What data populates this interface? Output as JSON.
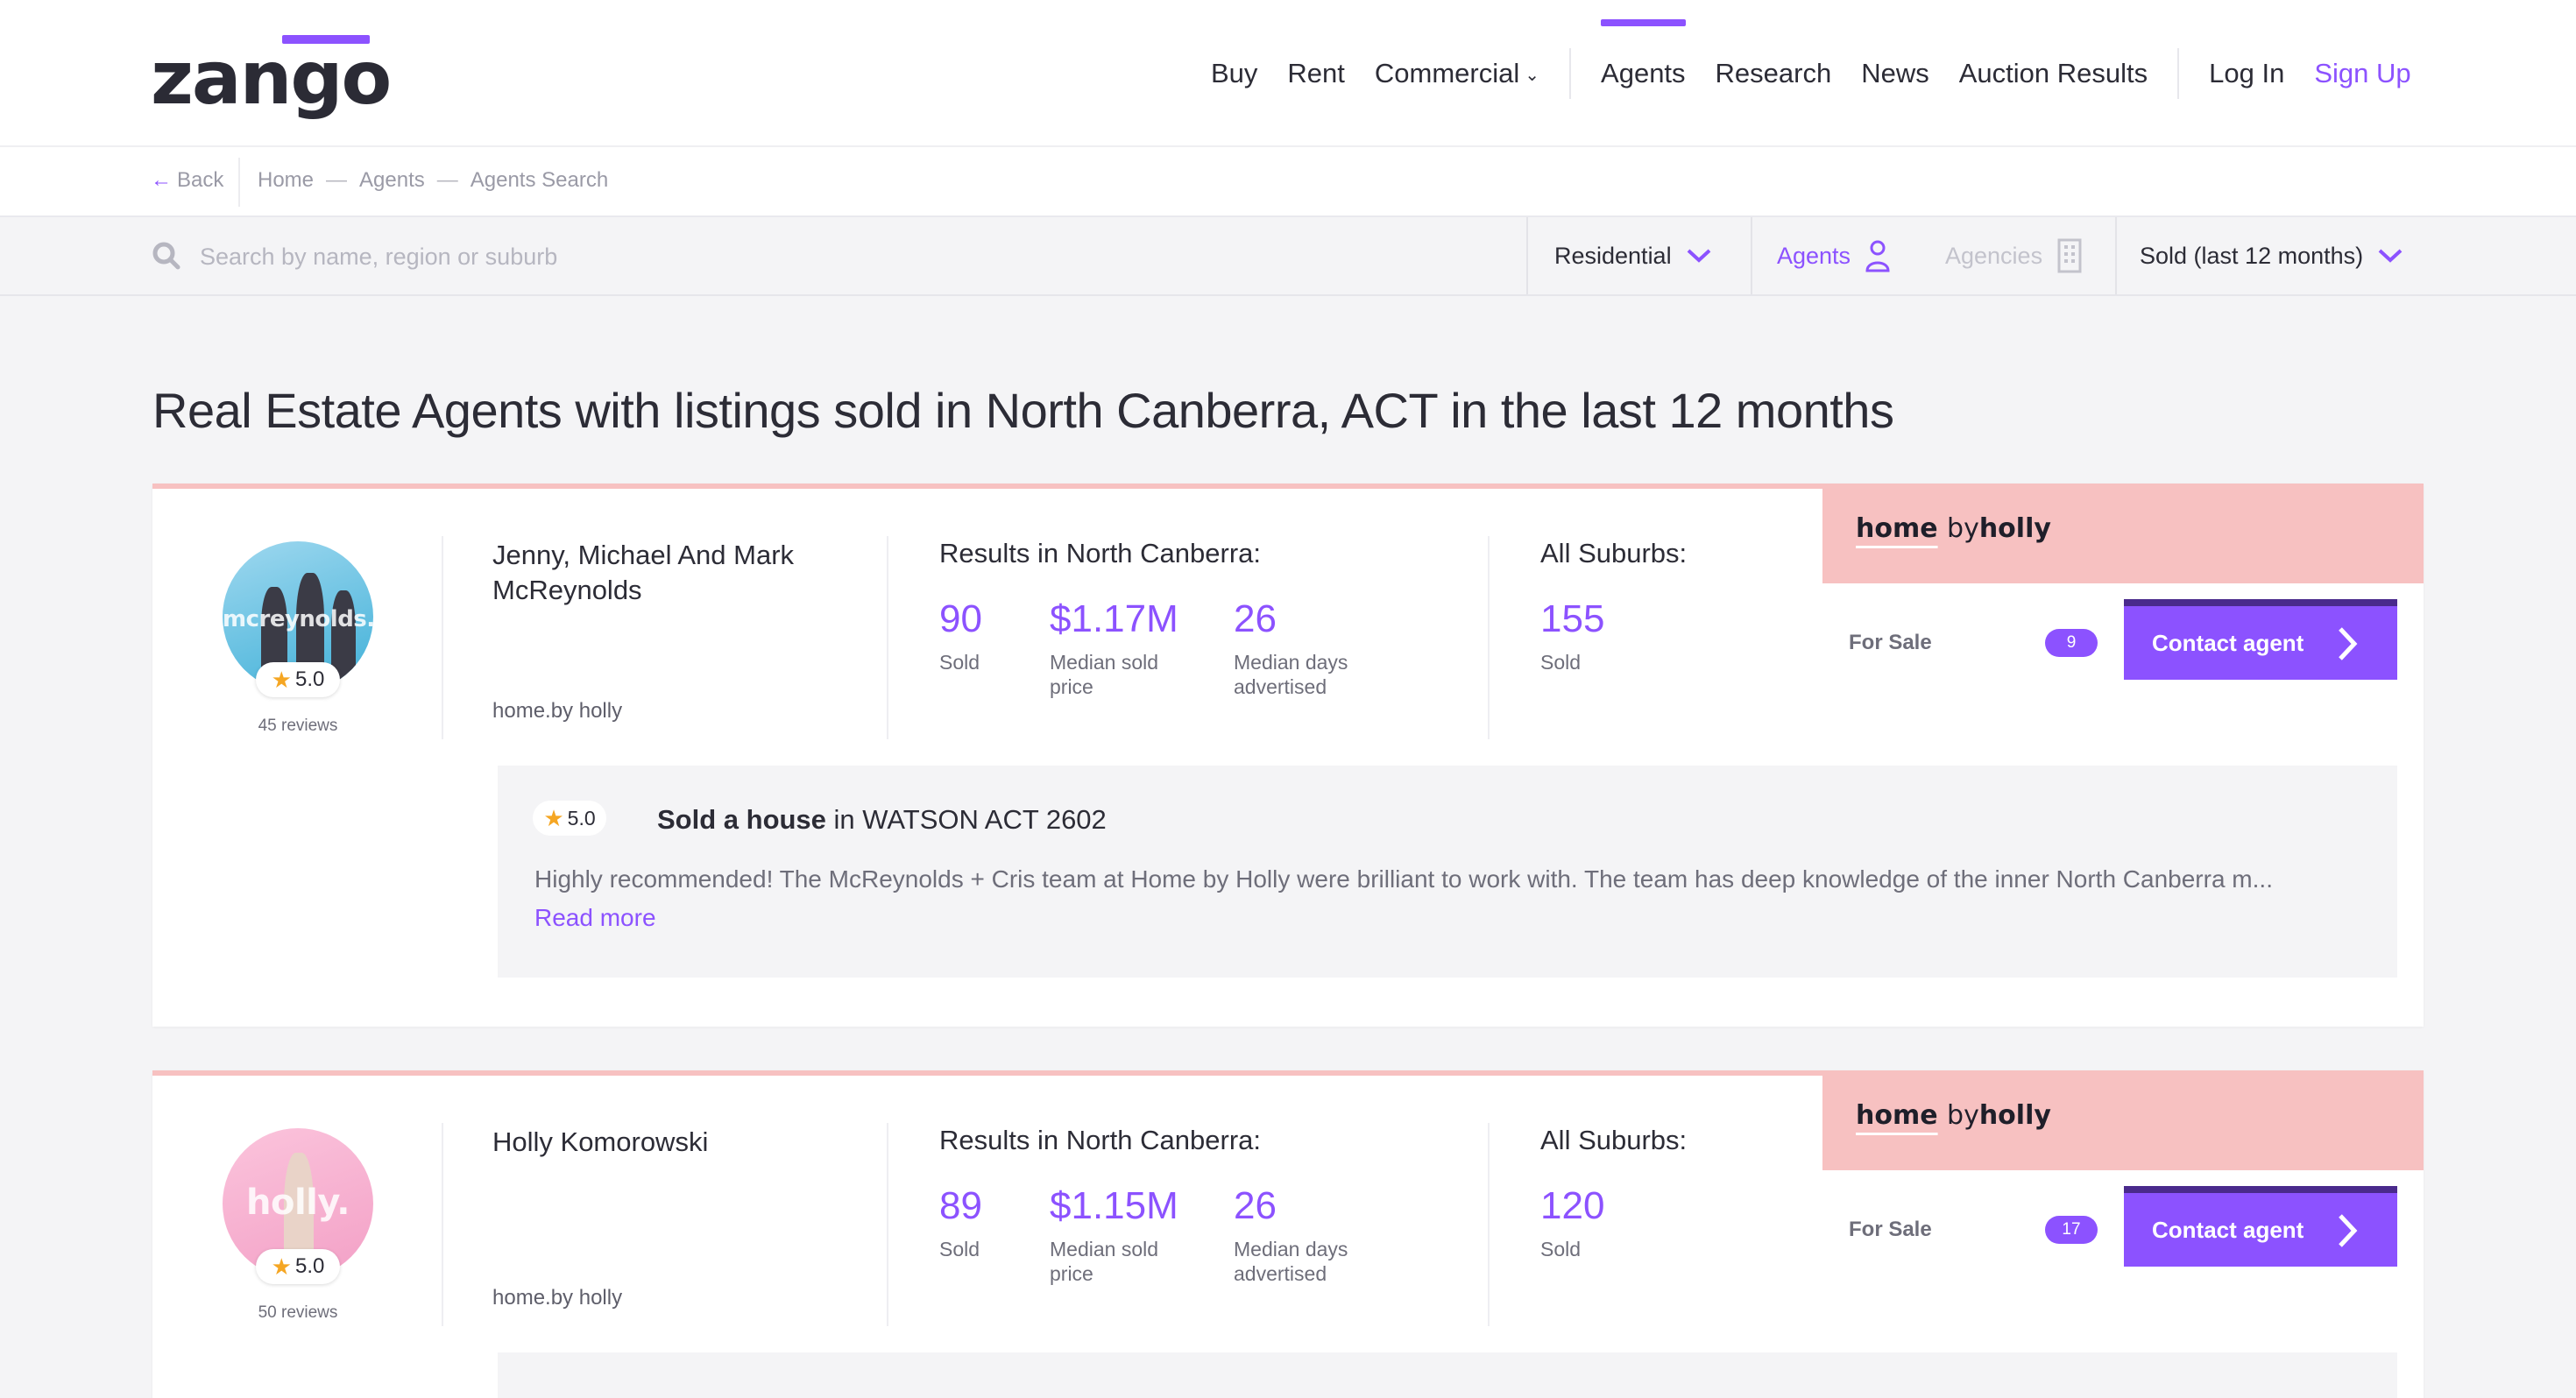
{
  "header": {
    "logo": "zango",
    "nav": [
      "Buy",
      "Rent",
      "Commercial",
      "Agents",
      "Research",
      "News",
      "Auction Results"
    ],
    "login": "Log In",
    "signup": "Sign Up"
  },
  "breadcrumb": {
    "back": "Back",
    "items": [
      "Home",
      "Agents",
      "Agents Search"
    ]
  },
  "search": {
    "placeholder": "Search by name, region or suburb",
    "filters": {
      "type": "Residential",
      "agents": "Agents",
      "agencies": "Agencies",
      "period": "Sold (last 12 months)"
    }
  },
  "page": {
    "title": "Real Estate Agents with listings sold in North Canberra, ACT in the last 12 months"
  },
  "agents": [
    {
      "avatar_text": "mcreynolds.",
      "rating": "5.0",
      "reviews": "45 reviews",
      "name": "Jenny, Michael And Mark McReynolds",
      "agency": "home.by holly",
      "results_title": "Results in North Canberra:",
      "sold": "90",
      "sold_label": "Sold",
      "median_price": "$1.17M",
      "median_price_label": "Median sold price",
      "median_days": "26",
      "median_days_label": "Median days advertised",
      "all_title": "All Suburbs:",
      "all_sold": "155",
      "all_sold_label": "Sold",
      "brand_home": "home",
      "brand_by": "by",
      "brand_holly": "holly",
      "for_sale_label": "For Sale",
      "for_sale_count": "9",
      "contact": "Contact agent",
      "review": {
        "rating": "5.0",
        "title_bold": "Sold a house",
        "title_rest": " in WATSON ACT 2602",
        "text": "Highly recommended! The McReynolds + Cris team at Home by Holly were brilliant to work with. The team has deep knowledge of the inner North Canberra m...",
        "more": "Read more"
      }
    },
    {
      "avatar_text": "holly.",
      "rating": "5.0",
      "reviews": "50 reviews",
      "name": "Holly Komorowski",
      "agency": "home.by holly",
      "results_title": "Results in North Canberra:",
      "sold": "89",
      "sold_label": "Sold",
      "median_price": "$1.15M",
      "median_price_label": "Median sold price",
      "median_days": "26",
      "median_days_label": "Median days advertised",
      "all_title": "All Suburbs:",
      "all_sold": "120",
      "all_sold_label": "Sold",
      "brand_home": "home",
      "brand_by": "by",
      "brand_holly": "holly",
      "for_sale_label": "For Sale",
      "for_sale_count": "17",
      "contact": "Contact agent"
    }
  ],
  "colors": {
    "accent": "#8c52ff",
    "brand_panel": "#f7c1c1",
    "star": "#f5a623"
  }
}
